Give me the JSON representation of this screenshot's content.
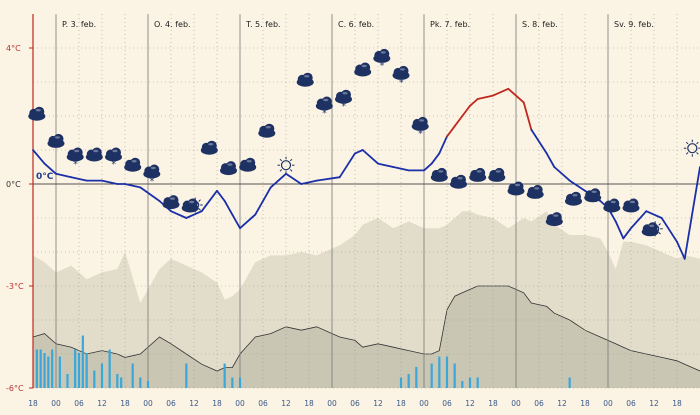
{
  "chart_data": {
    "type": "line",
    "title": "",
    "days": [
      "P. 3. feb.",
      "O. 4. feb.",
      "T. 5. feb.",
      "C. 6. feb.",
      "Pk. 7. feb.",
      "S. 8. feb.",
      "Sv. 9. feb."
    ],
    "y_axis": {
      "ticks": [
        4,
        0,
        -3,
        -6
      ],
      "tick_labels": [
        "4°C",
        "0°C",
        "-3°C",
        "-6°C"
      ],
      "ylim": [
        -6,
        5
      ]
    },
    "x_axis": {
      "hour_labels": [
        "18",
        "00",
        "06",
        "12",
        "18",
        "00",
        "06",
        "12",
        "18",
        "00",
        "06",
        "12",
        "18",
        "00",
        "06",
        "12",
        "18",
        "00",
        "06",
        "12",
        "18",
        "00",
        "06",
        "12",
        "18",
        "00",
        "06",
        "12",
        "18"
      ],
      "range_hours": [
        0,
        174
      ]
    },
    "zero_label": "0°C",
    "series": [
      {
        "name": "Temperature",
        "units": "°C",
        "x": [
          0,
          3,
          6,
          10,
          14,
          18,
          22,
          24,
          28,
          33,
          36,
          40,
          44,
          48,
          50,
          52,
          54,
          58,
          62,
          66,
          70,
          74,
          80,
          84,
          86,
          90,
          94,
          98,
          102,
          104,
          106,
          108,
          110,
          112,
          114,
          116,
          120,
          124,
          128,
          130,
          134,
          136,
          140,
          144,
          148,
          150,
          152,
          154,
          156,
          160,
          164,
          168,
          170,
          174
        ],
        "values": [
          1.0,
          0.6,
          0.3,
          0.2,
          0.1,
          0.1,
          0.0,
          0.0,
          -0.1,
          -0.5,
          -0.8,
          -1.0,
          -0.8,
          -0.2,
          -0.5,
          -0.9,
          -1.3,
          -0.9,
          -0.1,
          0.3,
          0.0,
          0.1,
          0.2,
          0.9,
          1.0,
          0.6,
          0.5,
          0.4,
          0.4,
          0.6,
          0.9,
          1.4,
          1.7,
          2.0,
          2.3,
          2.5,
          2.6,
          2.8,
          2.4,
          1.6,
          0.9,
          0.5,
          0.1,
          -0.2,
          -0.5,
          -0.7,
          -1.1,
          -1.6,
          -1.3,
          -0.8,
          -1.0,
          -1.7,
          -2.2,
          0.5
        ],
        "color": "#1a2fa8",
        "warm_color": "#c0281e"
      },
      {
        "name": "Upper band",
        "values": [
          -2.1,
          -2.3,
          -2.6,
          -2.4,
          -2.8,
          -2.6,
          -2.5,
          -2.0,
          -3.5,
          -2.5,
          -2.2,
          -2.4,
          -2.6,
          -2.9,
          -3.4,
          -3.3,
          -3.1,
          -2.3,
          -2.1,
          -2.1,
          -2.0,
          -2.1,
          -1.8,
          -1.5,
          -1.2,
          -1.0,
          -1.3,
          -1.1,
          -1.3,
          -1.3,
          -1.3,
          -1.2,
          -1.0,
          -0.8,
          -0.8,
          -0.9,
          -1.0,
          -1.3,
          -1.0,
          -1.1,
          -0.8,
          -1.2,
          -1.5,
          -1.5,
          -1.6,
          -2.0,
          -2.5,
          -1.7,
          -1.7,
          -1.8,
          -2.0,
          -2.2,
          -2.1,
          -2.2
        ]
      },
      {
        "name": "Lower band",
        "values": [
          -4.5,
          -4.4,
          -4.7,
          -4.8,
          -5.0,
          -4.9,
          -5.0,
          -5.1,
          -5.0,
          -4.5,
          -4.7,
          -5.0,
          -5.3,
          -5.5,
          -5.4,
          -5.4,
          -5.0,
          -4.5,
          -4.4,
          -4.2,
          -4.3,
          -4.2,
          -4.5,
          -4.6,
          -4.8,
          -4.7,
          -4.8,
          -4.9,
          -5.0,
          -5.0,
          -4.9,
          -3.7,
          -3.3,
          -3.2,
          -3.1,
          -3.0,
          -3.0,
          -3.0,
          -3.2,
          -3.5,
          -3.6,
          -3.8,
          -4.0,
          -4.3,
          -4.5,
          -4.6,
          -4.7,
          -4.8,
          -4.9,
          -5.0,
          -5.1,
          -5.2,
          -5.3,
          -5.5
        ]
      }
    ],
    "precipitation": {
      "units": "relative",
      "x": [
        1,
        2,
        3,
        4,
        5,
        7,
        9,
        11,
        12,
        13,
        14,
        16,
        18,
        20,
        22,
        23,
        26,
        28,
        30,
        40,
        50,
        52,
        54,
        96,
        98,
        100,
        104,
        106,
        108,
        110,
        112,
        114,
        116,
        140
      ],
      "values": [
        0.55,
        0.55,
        0.5,
        0.45,
        0.55,
        0.45,
        0.2,
        0.55,
        0.5,
        0.75,
        0.5,
        0.25,
        0.35,
        0.55,
        0.2,
        0.15,
        0.35,
        0.15,
        0.1,
        0.35,
        0.35,
        0.15,
        0.15,
        0.15,
        0.2,
        0.3,
        0.35,
        0.45,
        0.45,
        0.35,
        0.1,
        0.15,
        0.15,
        0.15
      ]
    },
    "weather_icons": [
      {
        "x": 1,
        "t": 1.7,
        "kind": "cloud"
      },
      {
        "x": 6,
        "t": 0.9,
        "kind": "cloud"
      },
      {
        "x": 11,
        "t": 0.5,
        "kind": "cloud-snow"
      },
      {
        "x": 16,
        "t": 0.5,
        "kind": "cloud"
      },
      {
        "x": 21,
        "t": 0.5,
        "kind": "cloud-snow"
      },
      {
        "x": 26,
        "t": 0.2,
        "kind": "cloud"
      },
      {
        "x": 31,
        "t": 0.0,
        "kind": "cloud-snow"
      },
      {
        "x": 36,
        "t": -0.9,
        "kind": "cloud"
      },
      {
        "x": 41,
        "t": -1.0,
        "kind": "cloud-sun"
      },
      {
        "x": 46,
        "t": 0.7,
        "kind": "cloud"
      },
      {
        "x": 51,
        "t": 0.1,
        "kind": "cloud"
      },
      {
        "x": 56,
        "t": 0.2,
        "kind": "cloud"
      },
      {
        "x": 61,
        "t": 1.2,
        "kind": "cloud"
      },
      {
        "x": 66,
        "t": 0.2,
        "kind": "sun"
      },
      {
        "x": 71,
        "t": 2.7,
        "kind": "cloud"
      },
      {
        "x": 76,
        "t": 2.0,
        "kind": "cloud-snow"
      },
      {
        "x": 81,
        "t": 2.2,
        "kind": "cloud-snow"
      },
      {
        "x": 86,
        "t": 3.0,
        "kind": "cloud"
      },
      {
        "x": 91,
        "t": 3.4,
        "kind": "cloud-snow"
      },
      {
        "x": 96,
        "t": 2.9,
        "kind": "cloud-snow"
      },
      {
        "x": 101,
        "t": 1.4,
        "kind": "cloud-snow"
      },
      {
        "x": 106,
        "t": -0.1,
        "kind": "cloud"
      },
      {
        "x": 111,
        "t": -0.3,
        "kind": "cloud"
      },
      {
        "x": 116,
        "t": -0.1,
        "kind": "cloud"
      },
      {
        "x": 121,
        "t": -0.1,
        "kind": "cloud"
      },
      {
        "x": 126,
        "t": -0.5,
        "kind": "cloud"
      },
      {
        "x": 131,
        "t": -0.6,
        "kind": "cloud"
      },
      {
        "x": 136,
        "t": -1.4,
        "kind": "cloud"
      },
      {
        "x": 141,
        "t": -0.8,
        "kind": "cloud"
      },
      {
        "x": 146,
        "t": -0.7,
        "kind": "cloud"
      },
      {
        "x": 151,
        "t": -1.0,
        "kind": "cloud"
      },
      {
        "x": 156,
        "t": -1.0,
        "kind": "cloud"
      },
      {
        "x": 161,
        "t": -1.7,
        "kind": "cloud-sun"
      },
      {
        "x": 172,
        "t": 0.7,
        "kind": "sun"
      }
    ],
    "colors": {
      "background": "#fbf3e4",
      "band_upper": "#e2dccb",
      "band_lower": "#c9c7b4",
      "precip": "#3aa7d8",
      "axis_red": "#c0281e",
      "gridline": "#777777",
      "icon": "#1e3163"
    }
  }
}
